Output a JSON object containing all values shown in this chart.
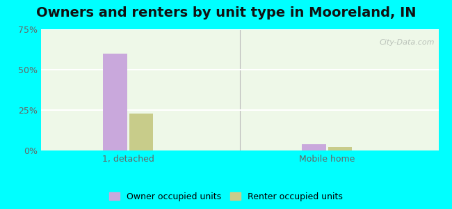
{
  "title": "Owners and renters by unit type in Mooreland, IN",
  "categories": [
    "1, detached",
    "Mobile home"
  ],
  "owner_values": [
    60.0,
    4.0
  ],
  "renter_values": [
    23.0,
    2.0
  ],
  "owner_color": "#c9a8dc",
  "renter_color": "#c8cc8a",
  "ylim": [
    0,
    75
  ],
  "yticks": [
    0,
    25,
    50,
    75
  ],
  "ytick_labels": [
    "0%",
    "25%",
    "50%",
    "75%"
  ],
  "bar_width": 0.06,
  "group_centers": [
    0.22,
    0.72
  ],
  "legend_owner": "Owner occupied units",
  "legend_renter": "Renter occupied units",
  "background_color": "#eef8e8",
  "outer_background": "#00ffff",
  "title_fontsize": 14,
  "watermark": "City-Data.com"
}
